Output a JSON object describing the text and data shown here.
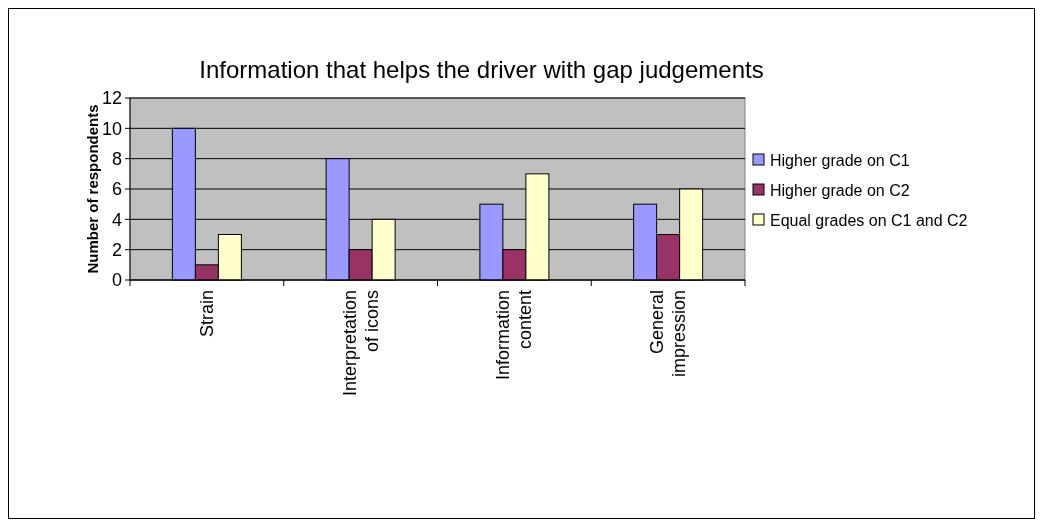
{
  "chart_data": {
    "type": "bar",
    "title": "Information that helps the driver with gap judgements",
    "ylabel": "Number of respondents",
    "categories": [
      "Strain",
      "Interpretation of icons",
      "Information content",
      "General impression"
    ],
    "series": [
      {
        "name": "Higher grade on C1",
        "color": "#9999ff",
        "values": [
          10,
          8,
          5,
          5
        ]
      },
      {
        "name": "Higher grade on C2",
        "color": "#993366",
        "values": [
          1,
          2,
          2,
          3
        ]
      },
      {
        "name": "Equal grades on C1 and C2",
        "color": "#ffffcc",
        "values": [
          3,
          4,
          7,
          6
        ]
      }
    ],
    "ylim": [
      0,
      12
    ],
    "yticks": [
      0,
      2,
      4,
      6,
      8,
      10,
      12
    ],
    "grid": "y",
    "legend": "right"
  }
}
